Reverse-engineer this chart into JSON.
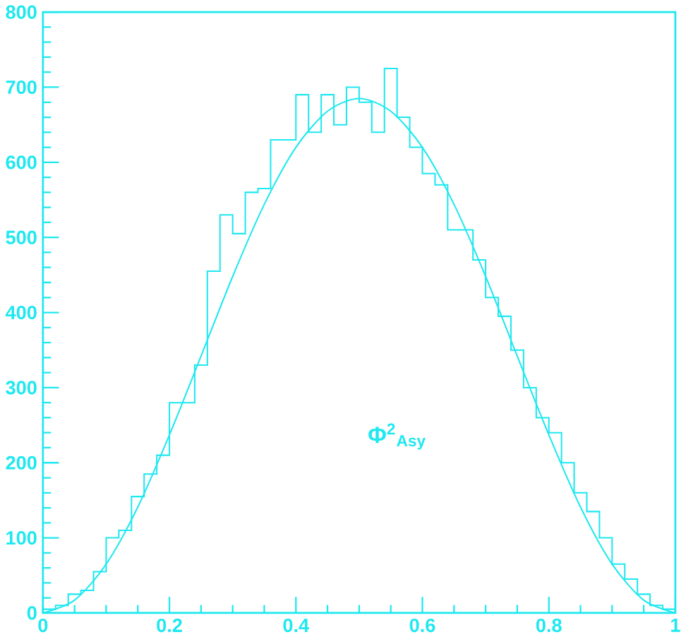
{
  "chart_data": {
    "type": "histogram",
    "xlim": [
      0,
      1
    ],
    "ylim": [
      0,
      800
    ],
    "xticks": [
      0,
      0.2,
      0.4,
      0.6,
      0.8,
      1
    ],
    "yticks": [
      0,
      100,
      200,
      300,
      400,
      500,
      600,
      700,
      800
    ],
    "annotations": [
      "Φ$^{2}$$_{Asy}$"
    ],
    "series": [
      {
        "type": "histogram",
        "color": "#1ee8f0",
        "bins": [
          0,
          0.02,
          0.04,
          0.06,
          0.08,
          0.1,
          0.12,
          0.14,
          0.16,
          0.18,
          0.2,
          0.22,
          0.24,
          0.26,
          0.28,
          0.3,
          0.32,
          0.34,
          0.36,
          0.38,
          0.4,
          0.42,
          0.44,
          0.46,
          0.48,
          0.5,
          0.52,
          0.54,
          0.56,
          0.58,
          0.6,
          0.62,
          0.64,
          0.66,
          0.68,
          0.7,
          0.72,
          0.74,
          0.76,
          0.78,
          0.8,
          0.82,
          0.84,
          0.86,
          0.88,
          0.9,
          0.92,
          0.94,
          0.96,
          0.98,
          1
        ],
        "values": [
          5,
          10,
          25,
          30,
          55,
          100,
          110,
          155,
          185,
          210,
          280,
          280,
          330,
          455,
          530,
          505,
          560,
          565,
          630,
          630,
          690,
          640,
          690,
          650,
          700,
          680,
          640,
          725,
          660,
          620,
          585,
          570,
          510,
          510,
          470,
          420,
          395,
          350,
          300,
          260,
          240,
          200,
          160,
          135,
          100,
          65,
          45,
          25,
          10,
          5
        ]
      },
      {
        "type": "line",
        "color": "#1ee8f0",
        "x": [
          0,
          0.05,
          0.1,
          0.15,
          0.2,
          0.25,
          0.3,
          0.35,
          0.4,
          0.45,
          0.5,
          0.55,
          0.6,
          0.65,
          0.7,
          0.75,
          0.8,
          0.85,
          0.9,
          0.95,
          1
        ],
        "values": [
          0,
          17,
          65,
          141,
          237,
          342,
          448,
          544,
          620,
          668,
          685,
          668,
          620,
          544,
          448,
          342,
          237,
          141,
          65,
          17,
          0
        ]
      }
    ]
  }
}
